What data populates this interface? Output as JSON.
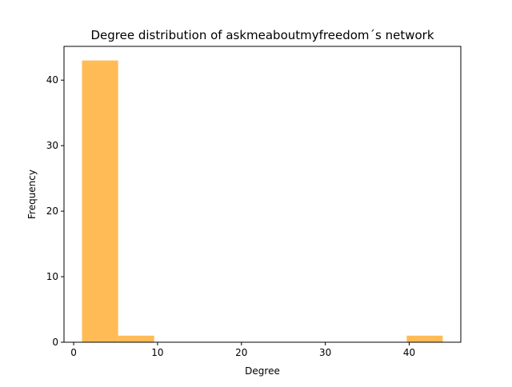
{
  "chart_data": {
    "type": "bar",
    "title": "Degree distribution of askmeaboutmyfreedom´s network",
    "xlabel": "Degree",
    "ylabel": "Frequency",
    "bins": [
      {
        "x0": 1.0,
        "x1": 5.3,
        "count": 43
      },
      {
        "x0": 5.3,
        "x1": 9.6,
        "count": 1
      },
      {
        "x0": 9.6,
        "x1": 13.9,
        "count": 0
      },
      {
        "x0": 13.9,
        "x1": 18.2,
        "count": 0
      },
      {
        "x0": 18.2,
        "x1": 22.5,
        "count": 0
      },
      {
        "x0": 22.5,
        "x1": 26.8,
        "count": 0
      },
      {
        "x0": 26.8,
        "x1": 31.1,
        "count": 0
      },
      {
        "x0": 31.1,
        "x1": 35.4,
        "count": 0
      },
      {
        "x0": 35.4,
        "x1": 39.7,
        "count": 0
      },
      {
        "x0": 39.7,
        "x1": 44.0,
        "count": 1
      }
    ],
    "xlim": [
      -1.15,
      46.15
    ],
    "ylim": [
      0,
      45.15
    ],
    "xticks": [
      0,
      10,
      20,
      30,
      40
    ],
    "yticks": [
      0,
      10,
      20,
      30,
      40
    ],
    "bar_color": "#ffbb55",
    "grid": false,
    "legend": false
  }
}
